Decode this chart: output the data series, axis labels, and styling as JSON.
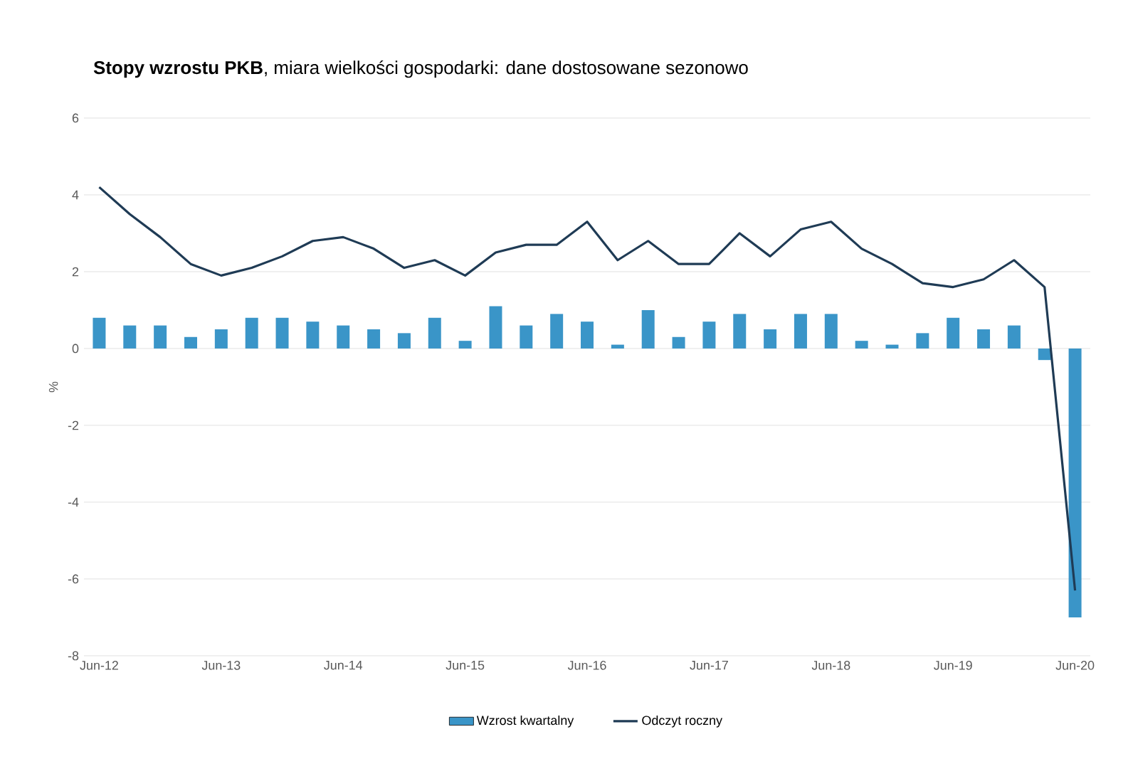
{
  "chart_data": {
    "type": "bar",
    "title": "**Stopy wzrostu PKB**, miara wielkości gospodarki: dane dostosowane sezonowo",
    "ylabel": "%",
    "categories": [
      "Jun-12",
      null,
      null,
      null,
      "Jun-13",
      null,
      null,
      null,
      "Jun-14",
      null,
      null,
      null,
      "Jun-15",
      null,
      null,
      null,
      "Jun-16",
      null,
      null,
      null,
      "Jun-17",
      null,
      null,
      null,
      "Jun-18",
      null,
      null,
      null,
      "Jun-19",
      null,
      null,
      null,
      "Jun-20"
    ],
    "series": [
      {
        "name": "Wzrost kwartalny",
        "color": "#3a95c8",
        "values": [
          0.8,
          0.6,
          0.6,
          0.3,
          0.5,
          0.8,
          0.8,
          0.7,
          0.6,
          0.5,
          0.4,
          0.8,
          0.2,
          1.1,
          0.6,
          0.9,
          0.7,
          0.1,
          1.0,
          0.3,
          0.7,
          0.9,
          0.5,
          0.9,
          0.9,
          0.2,
          0.1,
          0.4,
          0.8,
          0.5,
          0.6,
          -0.3,
          -7.0
        ]
      },
      {
        "name": "Odczyt roczny",
        "type": "line",
        "color": "#1f3b55",
        "values": [
          4.2,
          3.5,
          2.9,
          2.2,
          1.9,
          2.1,
          2.4,
          2.8,
          2.9,
          2.6,
          2.1,
          2.3,
          1.9,
          2.5,
          2.7,
          2.7,
          3.3,
          2.3,
          2.8,
          2.2,
          2.2,
          3.0,
          2.4,
          3.1,
          3.3,
          2.6,
          2.2,
          1.7,
          1.6,
          1.8,
          2.3,
          1.6,
          -6.3
        ]
      }
    ],
    "ylim": [
      -8,
      6
    ],
    "yticks": [
      -8,
      -6,
      -4,
      -2,
      0,
      2,
      4,
      6
    ],
    "grid": "y",
    "legend": "bottom",
    "marker": "none",
    "line_style": "solid"
  }
}
